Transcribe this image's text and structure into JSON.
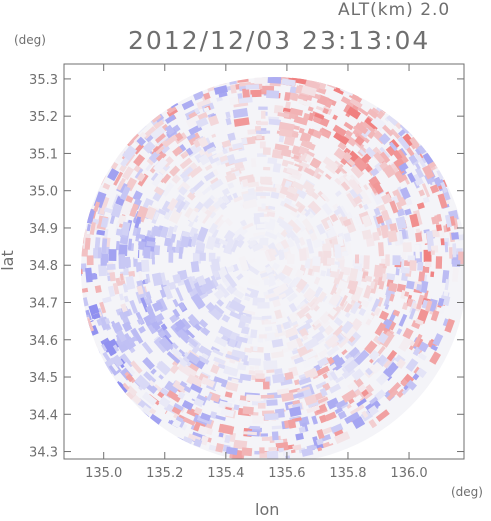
{
  "header": {
    "altitude_label": "ALT(km) 2.0",
    "timestamp": "2012/12/03 23:13:04"
  },
  "chart_data": {
    "type": "heatmap",
    "title": "2012/12/03 23:13:04",
    "subtitle": "ALT(km) 2.0",
    "xlabel": "lon",
    "ylabel": "lat",
    "x_unit": "(deg)",
    "y_unit": "(deg)",
    "xlim": [
      134.87,
      136.18
    ],
    "ylim": [
      34.28,
      35.34
    ],
    "x_ticks": [
      "135.0",
      "135.2",
      "135.4",
      "135.6",
      "135.8",
      "136.0"
    ],
    "x_tick_values": [
      135.0,
      135.2,
      135.4,
      135.6,
      135.8,
      136.0
    ],
    "y_ticks": [
      "34.3",
      "34.4",
      "34.5",
      "34.6",
      "34.7",
      "34.8",
      "34.9",
      "35.0",
      "35.1",
      "35.2",
      "35.3"
    ],
    "y_tick_values": [
      34.3,
      34.4,
      34.5,
      34.6,
      34.7,
      34.8,
      34.9,
      35.0,
      35.1,
      35.2,
      35.3
    ],
    "radar_center": {
      "lon": 135.52,
      "lat": 34.82
    },
    "colors": {
      "positive": "#f08080",
      "negative": "#9090f0",
      "neutral": "#f4f4f8",
      "axis": "#6f6f6f"
    }
  }
}
